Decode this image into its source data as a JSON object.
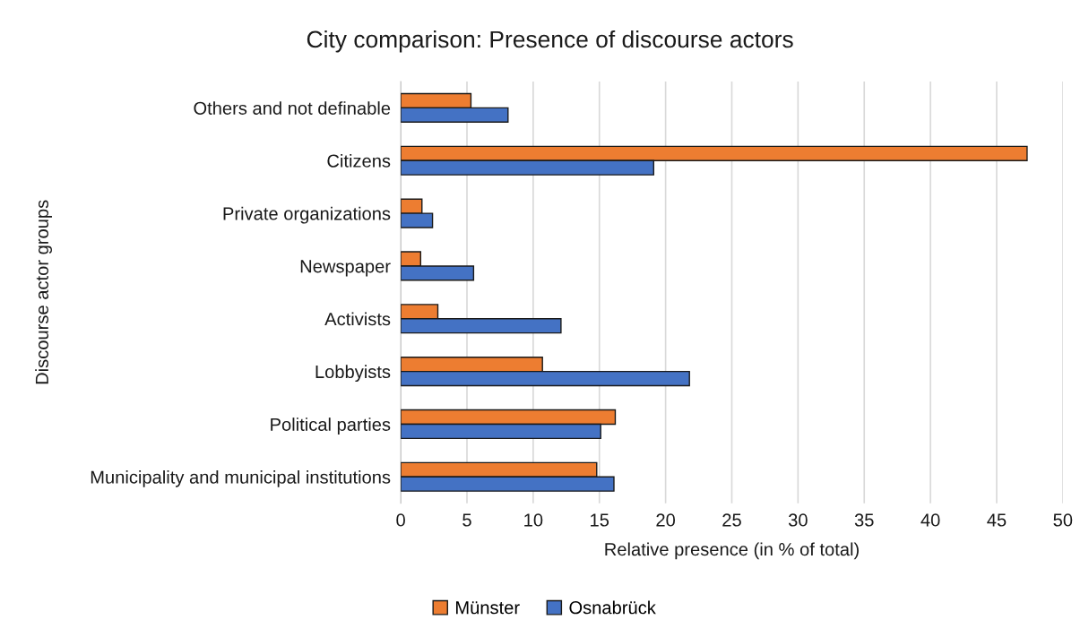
{
  "chart_data": {
    "type": "bar",
    "orientation": "horizontal",
    "title": "City comparison: Presence of discourse actors",
    "xlabel": "Relative presence (in % of total)",
    "ylabel": "Discourse actor groups",
    "categories": [
      "Others and not definable",
      "Citizens",
      "Private organizations",
      "Newspaper",
      "Activists",
      "Lobbyists",
      "Political parties",
      "Municipality and municipal institutions"
    ],
    "series": [
      {
        "name": "Münster",
        "color": "#ed7d31",
        "values": [
          5.3,
          47.3,
          1.6,
          1.5,
          2.8,
          10.7,
          16.2,
          14.8
        ]
      },
      {
        "name": "Osnabrück",
        "color": "#4472c4",
        "values": [
          8.1,
          19.1,
          2.4,
          5.5,
          12.1,
          21.8,
          15.1,
          16.1
        ]
      }
    ],
    "xlim": [
      0,
      50
    ],
    "xticks": [
      0,
      5,
      10,
      15,
      20,
      25,
      30,
      35,
      40,
      45,
      50
    ],
    "grid": "x",
    "legend": "bottom"
  }
}
